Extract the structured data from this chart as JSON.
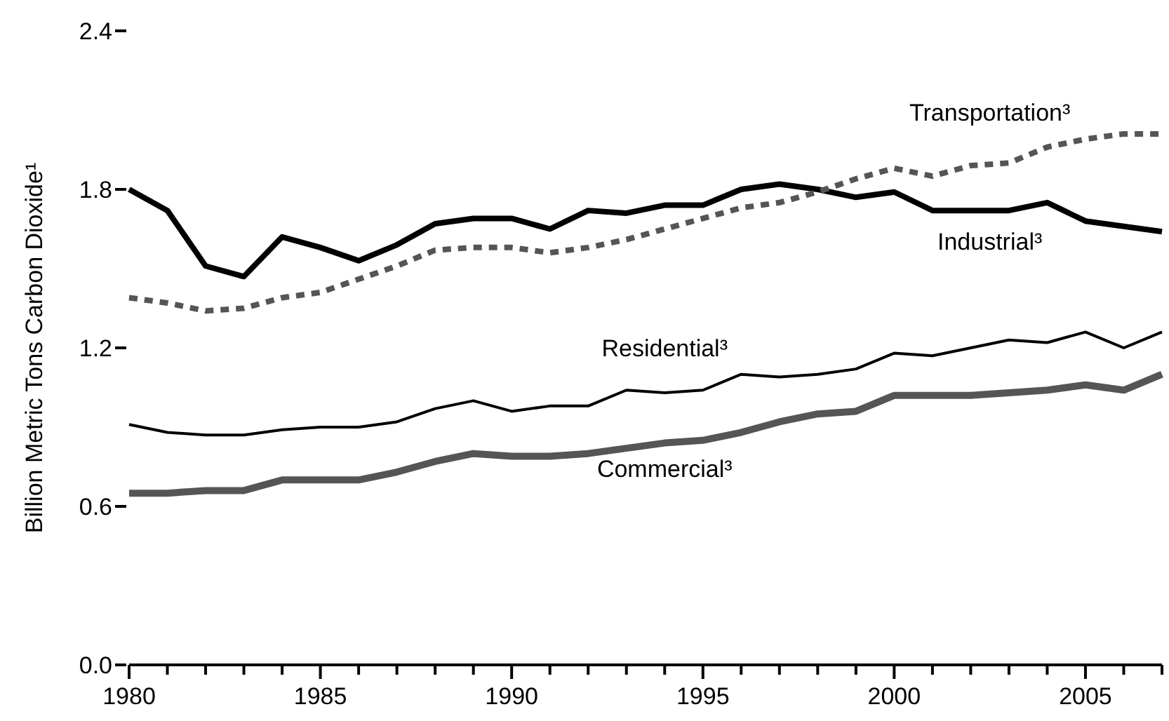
{
  "chart_data": {
    "type": "line",
    "ylabel": "Billion Metric Tons Carbon Dioxide¹",
    "x": [
      1980,
      1981,
      1982,
      1983,
      1984,
      1985,
      1986,
      1987,
      1988,
      1989,
      1990,
      1991,
      1992,
      1993,
      1994,
      1995,
      1996,
      1997,
      1998,
      1999,
      2000,
      2001,
      2002,
      2003,
      2004,
      2005,
      2006,
      2007
    ],
    "xlim": [
      1980,
      2007
    ],
    "xticks": [
      1980,
      {
        "value": 1981,
        "label": null
      },
      {
        "value": 1982,
        "label": null
      },
      {
        "value": 1983,
        "label": null
      },
      {
        "value": 1984,
        "label": null
      },
      1985,
      {
        "value": 1986,
        "label": null
      },
      {
        "value": 1987,
        "label": null
      },
      {
        "value": 1988,
        "label": null
      },
      {
        "value": 1989,
        "label": null
      },
      1990,
      {
        "value": 1991,
        "label": null
      },
      {
        "value": 1992,
        "label": null
      },
      {
        "value": 1993,
        "label": null
      },
      {
        "value": 1994,
        "label": null
      },
      1995,
      {
        "value": 1996,
        "label": null
      },
      {
        "value": 1997,
        "label": null
      },
      {
        "value": 1998,
        "label": null
      },
      {
        "value": 1999,
        "label": null
      },
      2000,
      {
        "value": 2001,
        "label": null
      },
      {
        "value": 2002,
        "label": null
      },
      {
        "value": 2003,
        "label": null
      },
      {
        "value": 2004,
        "label": null
      },
      2005,
      {
        "value": 2006,
        "label": null
      },
      {
        "value": 2007,
        "label": null
      }
    ],
    "ylim": [
      0,
      2.4
    ],
    "yticks": [
      {
        "value": 0,
        "label": "0.0"
      },
      0.6,
      1.2,
      1.8,
      2.4
    ],
    "grid": false,
    "marker": "none",
    "series": [
      {
        "name": "Industrial³",
        "color": "#000000",
        "line_style": "solid",
        "values": [
          1.8,
          1.72,
          1.51,
          1.47,
          1.62,
          1.58,
          1.53,
          1.59,
          1.67,
          1.69,
          1.69,
          1.65,
          1.72,
          1.71,
          1.74,
          1.74,
          1.8,
          1.82,
          1.8,
          1.77,
          1.79,
          1.72,
          1.72,
          1.72,
          1.75,
          1.68,
          1.66,
          1.64
        ]
      },
      {
        "name": "Transportation³",
        "color": "#555555",
        "line_style": "dashed",
        "values": [
          1.39,
          1.37,
          1.34,
          1.35,
          1.39,
          1.41,
          1.46,
          1.51,
          1.57,
          1.58,
          1.58,
          1.56,
          1.58,
          1.61,
          1.65,
          1.69,
          1.73,
          1.75,
          1.79,
          1.84,
          1.88,
          1.85,
          1.89,
          1.9,
          1.96,
          1.99,
          2.01,
          2.01
        ]
      },
      {
        "name": "Residential³",
        "color": "#000000",
        "line_style": "solid",
        "values": [
          0.91,
          0.88,
          0.87,
          0.87,
          0.89,
          0.9,
          0.9,
          0.92,
          0.97,
          1.0,
          0.96,
          0.98,
          0.98,
          1.04,
          1.03,
          1.04,
          1.1,
          1.09,
          1.1,
          1.12,
          1.18,
          1.17,
          1.2,
          1.23,
          1.22,
          1.26,
          1.2,
          1.26
        ]
      },
      {
        "name": "Commercial³",
        "color": "#555555",
        "line_style": "solid",
        "values": [
          0.65,
          0.65,
          0.66,
          0.66,
          0.7,
          0.7,
          0.7,
          0.73,
          0.77,
          0.8,
          0.79,
          0.79,
          0.8,
          0.82,
          0.84,
          0.85,
          0.88,
          0.92,
          0.95,
          0.96,
          1.02,
          1.02,
          1.02,
          1.03,
          1.04,
          1.06,
          1.04,
          1.1
        ]
      }
    ]
  }
}
